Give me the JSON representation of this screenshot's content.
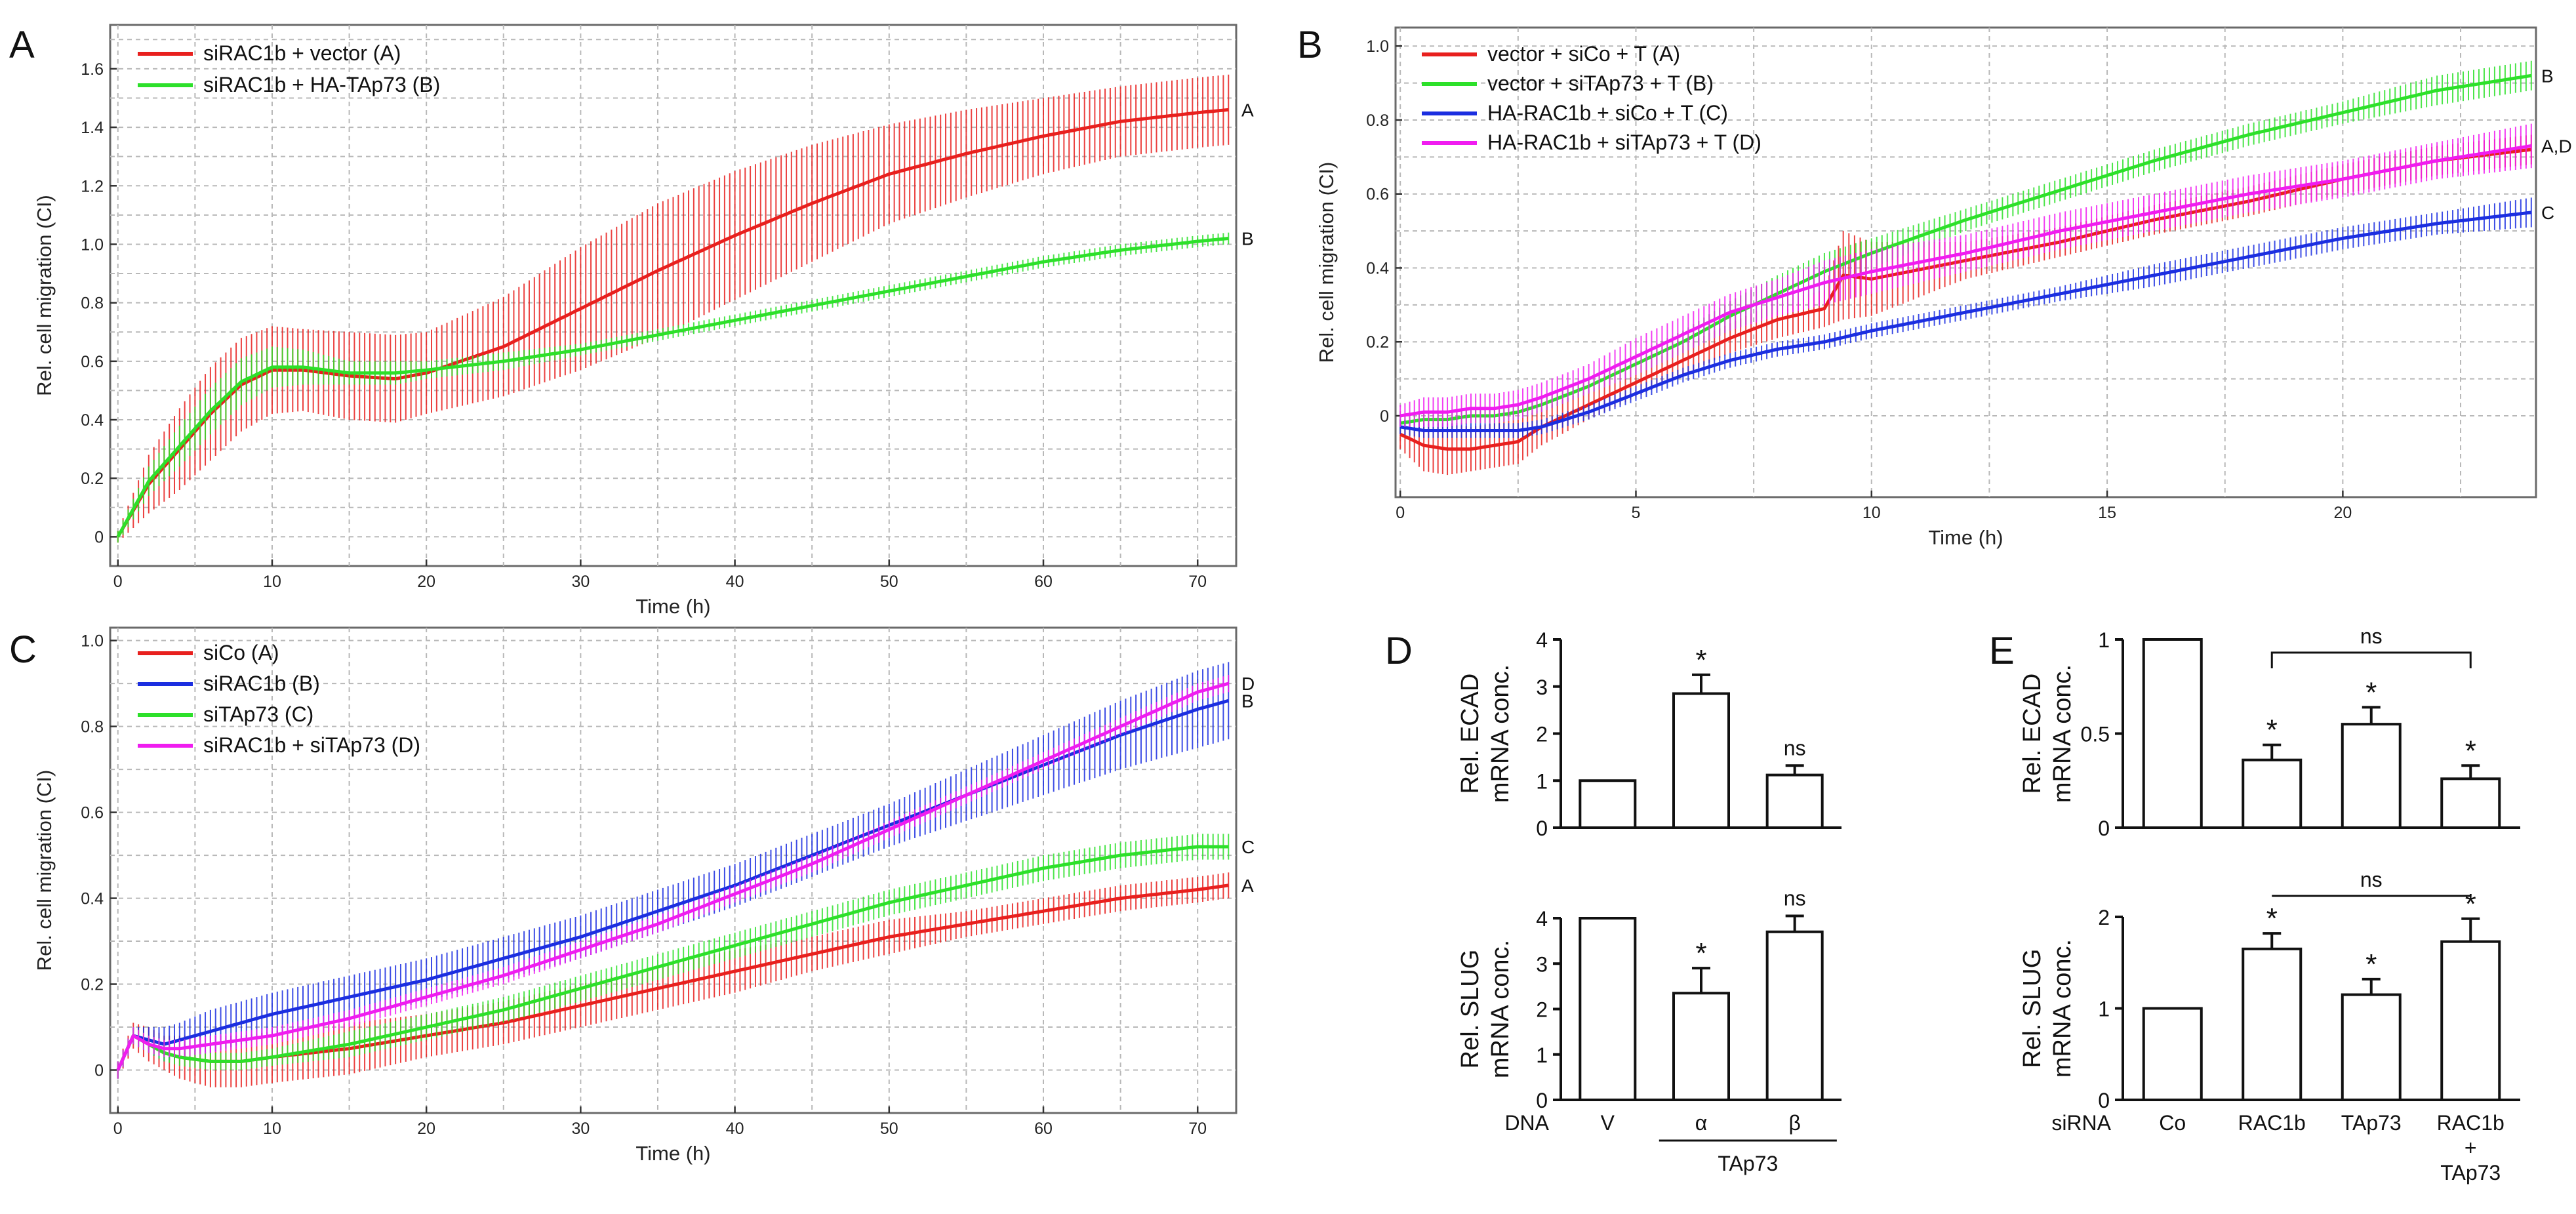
{
  "chart_data": [
    {
      "panel": "A",
      "type": "line",
      "title": "",
      "xlabel": "Time (h)",
      "ylabel": "Rel. cell migration (CI)",
      "xlim": [
        -0.5,
        72.5
      ],
      "ylim": [
        -0.1,
        1.75
      ],
      "xticks": [
        0,
        10,
        20,
        30,
        40,
        50,
        60,
        70
      ],
      "yticks": [
        0,
        0.2,
        0.4,
        0.6,
        0.8,
        1.0,
        1.2,
        1.4,
        1.6
      ],
      "ytick_labels": [
        "0",
        "0.2",
        "0.4",
        "0.6",
        "0.8",
        "1.0",
        "1.2",
        "1.4",
        "1.6"
      ],
      "grid": true,
      "legend_position": "top-left",
      "series": [
        {
          "name": "siRAC1b + vector (A)",
          "end_label": "A",
          "color": "#e8201e",
          "x": [
            0,
            2,
            4,
            6,
            8,
            10,
            12,
            15,
            18,
            20,
            25,
            30,
            35,
            40,
            45,
            50,
            55,
            60,
            65,
            70,
            72
          ],
          "values": [
            0.0,
            0.18,
            0.3,
            0.42,
            0.52,
            0.57,
            0.57,
            0.55,
            0.54,
            0.56,
            0.65,
            0.78,
            0.91,
            1.03,
            1.14,
            1.24,
            1.31,
            1.37,
            1.42,
            1.45,
            1.46
          ],
          "errors": [
            0.02,
            0.1,
            0.14,
            0.16,
            0.16,
            0.15,
            0.14,
            0.15,
            0.15,
            0.14,
            0.17,
            0.21,
            0.23,
            0.22,
            0.2,
            0.17,
            0.15,
            0.13,
            0.12,
            0.12,
            0.12
          ]
        },
        {
          "name": "siRAC1b + HA-TAp73 (B)",
          "end_label": "B",
          "color": "#2de02a",
          "x": [
            0,
            2,
            4,
            6,
            8,
            10,
            12,
            15,
            18,
            20,
            25,
            30,
            35,
            40,
            45,
            50,
            55,
            60,
            65,
            70,
            72
          ],
          "values": [
            0.0,
            0.19,
            0.31,
            0.43,
            0.53,
            0.58,
            0.58,
            0.56,
            0.56,
            0.57,
            0.6,
            0.64,
            0.69,
            0.74,
            0.79,
            0.84,
            0.89,
            0.94,
            0.98,
            1.01,
            1.02
          ],
          "errors": [
            0.02,
            0.05,
            0.07,
            0.08,
            0.08,
            0.07,
            0.06,
            0.04,
            0.04,
            0.03,
            0.03,
            0.02,
            0.02,
            0.02,
            0.02,
            0.02,
            0.02,
            0.02,
            0.02,
            0.02,
            0.02
          ]
        }
      ]
    },
    {
      "panel": "B",
      "type": "line",
      "title": "",
      "xlabel": "Time (h)",
      "ylabel": "Rel. cell migration (CI)",
      "xlim": [
        -0.1,
        24.1
      ],
      "ylim": [
        -0.22,
        1.05
      ],
      "xticks": [
        0,
        5,
        10,
        15,
        20
      ],
      "yticks": [
        0,
        0.2,
        0.4,
        0.6,
        0.8,
        1.0
      ],
      "ytick_labels": [
        "0",
        "0.2",
        "0.4",
        "0.6",
        "0.8",
        "1.0"
      ],
      "grid": true,
      "legend_position": "top-left",
      "series": [
        {
          "name": "vector + siCo + T (A)",
          "end_label": "",
          "color": "#e8201e",
          "x": [
            0,
            0.5,
            1,
            1.5,
            2,
            2.5,
            3,
            4,
            5,
            6,
            7,
            8,
            9,
            9.4,
            10,
            12,
            14,
            16,
            18,
            20,
            22,
            24
          ],
          "values": [
            -0.05,
            -0.08,
            -0.09,
            -0.09,
            -0.08,
            -0.07,
            -0.03,
            0.03,
            0.09,
            0.15,
            0.21,
            0.26,
            0.29,
            0.38,
            0.37,
            0.42,
            0.47,
            0.53,
            0.58,
            0.64,
            0.69,
            0.72
          ],
          "errors": [
            0.04,
            0.07,
            0.07,
            0.06,
            0.06,
            0.06,
            0.05,
            0.04,
            0.04,
            0.04,
            0.04,
            0.05,
            0.05,
            0.12,
            0.1,
            0.05,
            0.04,
            0.04,
            0.04,
            0.04,
            0.04,
            0.04
          ]
        },
        {
          "name": "vector + siTAp73 + T (B)",
          "end_label": "B",
          "color": "#2de02a",
          "x": [
            0,
            0.5,
            1,
            1.5,
            2,
            2.5,
            3,
            4,
            5,
            6,
            7,
            8,
            9,
            10,
            12,
            14,
            16,
            18,
            20,
            22,
            24
          ],
          "values": [
            -0.02,
            -0.01,
            -0.01,
            0.0,
            0.0,
            0.01,
            0.03,
            0.08,
            0.14,
            0.2,
            0.27,
            0.33,
            0.39,
            0.44,
            0.53,
            0.61,
            0.69,
            0.76,
            0.82,
            0.88,
            0.92
          ],
          "errors": [
            0.02,
            0.02,
            0.02,
            0.02,
            0.02,
            0.02,
            0.02,
            0.02,
            0.03,
            0.03,
            0.04,
            0.05,
            0.05,
            0.04,
            0.03,
            0.03,
            0.03,
            0.03,
            0.03,
            0.04,
            0.04
          ]
        },
        {
          "name": "HA-RAC1b + siCo + T (C)",
          "end_label": "C",
          "color": "#1b2ee0",
          "x": [
            0,
            0.5,
            1,
            1.5,
            2,
            2.5,
            3,
            4,
            5,
            6,
            7,
            8,
            9,
            10,
            12,
            14,
            16,
            18,
            20,
            22,
            24
          ],
          "values": [
            -0.03,
            -0.04,
            -0.04,
            -0.04,
            -0.04,
            -0.04,
            -0.03,
            0.01,
            0.06,
            0.11,
            0.15,
            0.18,
            0.2,
            0.23,
            0.28,
            0.33,
            0.38,
            0.43,
            0.48,
            0.52,
            0.55
          ],
          "errors": [
            0.02,
            0.02,
            0.02,
            0.02,
            0.02,
            0.02,
            0.02,
            0.02,
            0.02,
            0.02,
            0.02,
            0.02,
            0.02,
            0.02,
            0.02,
            0.02,
            0.03,
            0.03,
            0.03,
            0.03,
            0.04
          ]
        },
        {
          "name": "HA-RAC1b + siTAp73 + T (D)",
          "end_label": "A,D",
          "color": "#f01cf0",
          "x": [
            0,
            0.5,
            1,
            1.5,
            2,
            2.5,
            3,
            4,
            5,
            6,
            7,
            8,
            9,
            10,
            12,
            14,
            16,
            18,
            20,
            22,
            24
          ],
          "values": [
            0.0,
            0.01,
            0.01,
            0.02,
            0.02,
            0.03,
            0.05,
            0.1,
            0.16,
            0.22,
            0.28,
            0.32,
            0.36,
            0.39,
            0.44,
            0.5,
            0.55,
            0.6,
            0.64,
            0.69,
            0.73
          ],
          "errors": [
            0.03,
            0.04,
            0.04,
            0.04,
            0.04,
            0.04,
            0.04,
            0.04,
            0.05,
            0.05,
            0.05,
            0.05,
            0.06,
            0.06,
            0.05,
            0.05,
            0.05,
            0.05,
            0.05,
            0.05,
            0.06
          ]
        }
      ]
    },
    {
      "panel": "C",
      "type": "line",
      "title": "",
      "xlabel": "Time (h)",
      "ylabel": "Rel. cell migration (CI)",
      "xlim": [
        -0.5,
        72.5
      ],
      "ylim": [
        -0.1,
        1.03
      ],
      "xticks": [
        0,
        10,
        20,
        30,
        40,
        50,
        60,
        70
      ],
      "yticks": [
        0,
        0.2,
        0.4,
        0.6,
        0.8,
        1.0
      ],
      "ytick_labels": [
        "0",
        "0.2",
        "0.4",
        "0.6",
        "0.8",
        "1.0"
      ],
      "grid": true,
      "legend_position": "top-left",
      "series": [
        {
          "name": "siCo (A)",
          "end_label": "A",
          "color": "#e8201e",
          "x": [
            0,
            1,
            2,
            3,
            4,
            6,
            8,
            10,
            15,
            20,
            25,
            30,
            35,
            40,
            45,
            50,
            55,
            60,
            65,
            70,
            72
          ],
          "values": [
            0.0,
            0.08,
            0.06,
            0.04,
            0.03,
            0.02,
            0.02,
            0.03,
            0.05,
            0.08,
            0.11,
            0.15,
            0.19,
            0.23,
            0.27,
            0.31,
            0.34,
            0.37,
            0.4,
            0.42,
            0.43
          ],
          "errors": [
            0.02,
            0.03,
            0.04,
            0.04,
            0.05,
            0.06,
            0.06,
            0.06,
            0.06,
            0.05,
            0.05,
            0.05,
            0.05,
            0.05,
            0.04,
            0.04,
            0.03,
            0.03,
            0.03,
            0.03,
            0.03
          ]
        },
        {
          "name": "siRAC1b (B)",
          "end_label": "B",
          "color": "#1b2ee0",
          "x": [
            0,
            1,
            2,
            3,
            4,
            6,
            8,
            10,
            15,
            20,
            25,
            30,
            35,
            40,
            45,
            50,
            55,
            60,
            65,
            70,
            72
          ],
          "values": [
            0.0,
            0.08,
            0.07,
            0.06,
            0.07,
            0.09,
            0.11,
            0.13,
            0.17,
            0.21,
            0.26,
            0.31,
            0.37,
            0.43,
            0.5,
            0.57,
            0.64,
            0.71,
            0.78,
            0.84,
            0.86
          ],
          "errors": [
            0.02,
            0.02,
            0.03,
            0.04,
            0.04,
            0.05,
            0.05,
            0.05,
            0.05,
            0.05,
            0.05,
            0.05,
            0.05,
            0.05,
            0.05,
            0.05,
            0.06,
            0.07,
            0.08,
            0.09,
            0.09
          ]
        },
        {
          "name": "siTAp73 (C)",
          "end_label": "C",
          "color": "#2de02a",
          "x": [
            0,
            1,
            2,
            3,
            4,
            6,
            8,
            10,
            15,
            20,
            25,
            30,
            35,
            40,
            45,
            50,
            55,
            60,
            65,
            70,
            72
          ],
          "values": [
            0.0,
            0.08,
            0.06,
            0.04,
            0.03,
            0.02,
            0.02,
            0.03,
            0.06,
            0.1,
            0.14,
            0.19,
            0.24,
            0.29,
            0.34,
            0.39,
            0.43,
            0.47,
            0.5,
            0.52,
            0.52
          ],
          "errors": [
            0.02,
            0.02,
            0.02,
            0.02,
            0.02,
            0.02,
            0.02,
            0.02,
            0.03,
            0.03,
            0.03,
            0.03,
            0.03,
            0.03,
            0.03,
            0.03,
            0.03,
            0.03,
            0.03,
            0.03,
            0.03
          ]
        },
        {
          "name": "siRAC1b + siTAp73 (D)",
          "end_label": "D",
          "color": "#f01cf0",
          "x": [
            0,
            1,
            2,
            3,
            4,
            6,
            8,
            10,
            15,
            20,
            25,
            30,
            35,
            40,
            45,
            50,
            55,
            60,
            65,
            70,
            72
          ],
          "values": [
            0.0,
            0.08,
            0.06,
            0.05,
            0.05,
            0.06,
            0.07,
            0.08,
            0.12,
            0.17,
            0.22,
            0.28,
            0.34,
            0.41,
            0.48,
            0.56,
            0.64,
            0.72,
            0.8,
            0.88,
            0.9
          ],
          "errors": [
            0.02,
            0.02,
            0.02,
            0.02,
            0.02,
            0.02,
            0.02,
            0.02,
            0.02,
            0.02,
            0.02,
            0.02,
            0.02,
            0.02,
            0.02,
            0.02,
            0.02,
            0.02,
            0.02,
            0.02,
            0.02
          ]
        }
      ]
    },
    {
      "panel": "D",
      "subpanel": "top",
      "type": "bar",
      "ylabel_lines": [
        "Rel. ECAD",
        "mRNA conc."
      ],
      "ylim": [
        0,
        4
      ],
      "yticks": [
        0,
        1,
        2,
        3,
        4
      ],
      "categories": [
        "V",
        "α",
        "β"
      ],
      "values": [
        1.0,
        2.85,
        1.12
      ],
      "errors": [
        0.0,
        0.4,
        0.2
      ],
      "annotations": [
        "",
        "*",
        "ns"
      ]
    },
    {
      "panel": "D",
      "subpanel": "bottom",
      "type": "bar",
      "ylabel_lines": [
        "Rel. SLUG",
        "mRNA conc."
      ],
      "ylim": [
        0,
        4
      ],
      "yticks": [
        0,
        1,
        2,
        3,
        4
      ],
      "categories": [
        "V",
        "α",
        "β"
      ],
      "category_lines": [
        [
          "V"
        ],
        [
          "α"
        ],
        [
          "β"
        ]
      ],
      "row_label": "DNA",
      "group_label": "TAp73",
      "values": [
        4.0,
        2.35,
        3.7
      ],
      "errors": [
        0.0,
        0.55,
        0.35
      ],
      "annotations": [
        "",
        "*",
        "ns"
      ]
    },
    {
      "panel": "E",
      "subpanel": "top",
      "type": "bar",
      "ylabel_lines": [
        "Rel. ECAD",
        "mRNA conc."
      ],
      "ylim": [
        0,
        1
      ],
      "yticks": [
        0,
        0.5,
        1
      ],
      "ytick_labels": [
        "0",
        "0.5",
        "1"
      ],
      "categories": [
        "Co",
        "RAC1b",
        "TAp73",
        "RAC1b + TAp73"
      ],
      "values": [
        1.0,
        0.36,
        0.55,
        0.26
      ],
      "errors": [
        0.0,
        0.08,
        0.09,
        0.07
      ],
      "annotations": [
        "",
        "*",
        "*",
        "*"
      ],
      "bracket_label": "ns"
    },
    {
      "panel": "E",
      "subpanel": "bottom",
      "type": "bar",
      "ylabel_lines": [
        "Rel. SLUG",
        "mRNA conc."
      ],
      "ylim": [
        0,
        2
      ],
      "yticks": [
        0,
        1,
        2
      ],
      "categories": [
        "Co",
        "RAC1b",
        "TAp73",
        "RAC1b + TAp73"
      ],
      "category_lines": [
        [
          "Co"
        ],
        [
          "RAC1b"
        ],
        [
          "TAp73"
        ],
        [
          "RAC1b",
          "+",
          "TAp73"
        ]
      ],
      "row_label": "siRNA",
      "values": [
        1.0,
        1.65,
        1.15,
        1.73
      ],
      "errors": [
        0.0,
        0.17,
        0.17,
        0.25
      ],
      "annotations": [
        "",
        "*",
        "*",
        "*"
      ],
      "bracket_label": "ns"
    }
  ]
}
